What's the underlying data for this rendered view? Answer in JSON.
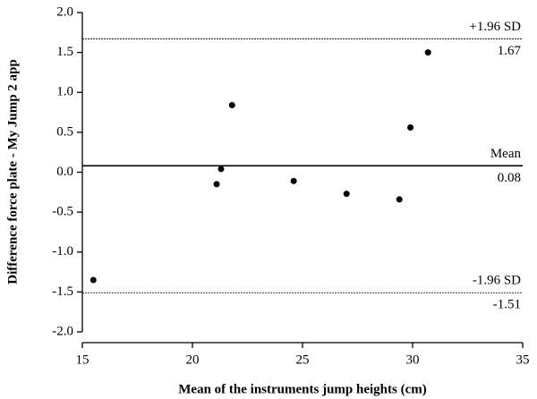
{
  "chart_data": {
    "type": "scatter",
    "x_label": "Mean of the instruments jump heights (cm)",
    "y_label": "Difference force plate - My Jump 2 app",
    "x": [
      15.5,
      21.1,
      21.3,
      21.8,
      24.6,
      27.0,
      29.4,
      29.9,
      30.7
    ],
    "values": [
      -1.35,
      -0.15,
      0.04,
      0.84,
      -0.11,
      -0.27,
      -0.34,
      0.56,
      1.5
    ],
    "color": "#000000",
    "xlim": [
      15,
      35
    ],
    "xticks": [
      15,
      20,
      25,
      30,
      35
    ],
    "ylim": [
      -2,
      2
    ],
    "yticks": [
      {
        "value": -2,
        "label": "-2.0"
      },
      {
        "value": -1.5,
        "label": "-1.5"
      },
      {
        "value": -1,
        "label": "-1.0"
      },
      {
        "value": -0.5,
        "label": "-0.5"
      },
      {
        "value": 0,
        "label": "0.0"
      },
      {
        "value": 0.5,
        "label": "0.5"
      },
      {
        "value": 1,
        "label": "1.0"
      },
      {
        "value": 1.5,
        "label": "1.5"
      },
      {
        "value": 2,
        "label": "2.0"
      }
    ],
    "reference_lines": [
      {
        "label": "+1.96 SD",
        "value": 1.67,
        "style": "dashed"
      },
      {
        "label": "Mean",
        "value": 0.08,
        "style": "solid"
      },
      {
        "label": "-1.96 SD",
        "value": -1.51,
        "style": "dashed"
      }
    ]
  }
}
